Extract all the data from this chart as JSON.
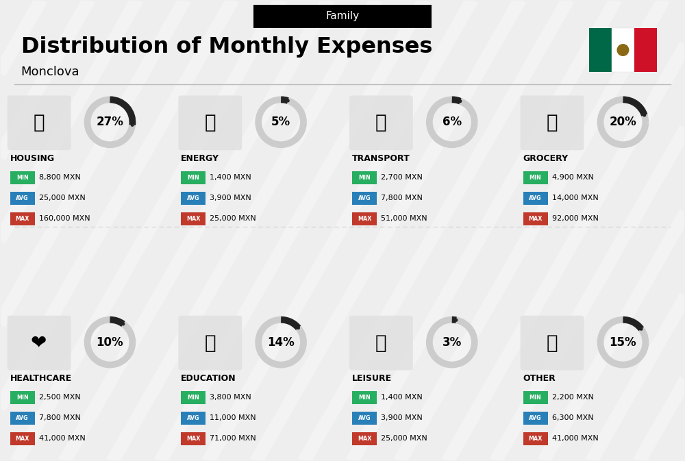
{
  "title": "Distribution of Monthly Expenses",
  "subtitle": "Monclova",
  "category_label": "Family",
  "background_color": "#eeeeee",
  "categories": [
    {
      "name": "HOUSING",
      "pct": 27,
      "min_val": "8,800 MXN",
      "avg_val": "25,000 MXN",
      "max_val": "160,000 MXN",
      "row": 0,
      "col": 0
    },
    {
      "name": "ENERGY",
      "pct": 5,
      "min_val": "1,400 MXN",
      "avg_val": "3,900 MXN",
      "max_val": "25,000 MXN",
      "row": 0,
      "col": 1
    },
    {
      "name": "TRANSPORT",
      "pct": 6,
      "min_val": "2,700 MXN",
      "avg_val": "7,800 MXN",
      "max_val": "51,000 MXN",
      "row": 0,
      "col": 2
    },
    {
      "name": "GROCERY",
      "pct": 20,
      "min_val": "4,900 MXN",
      "avg_val": "14,000 MXN",
      "max_val": "92,000 MXN",
      "row": 0,
      "col": 3
    },
    {
      "name": "HEALTHCARE",
      "pct": 10,
      "min_val": "2,500 MXN",
      "avg_val": "7,800 MXN",
      "max_val": "41,000 MXN",
      "row": 1,
      "col": 0
    },
    {
      "name": "EDUCATION",
      "pct": 14,
      "min_val": "3,800 MXN",
      "avg_val": "11,000 MXN",
      "max_val": "71,000 MXN",
      "row": 1,
      "col": 1
    },
    {
      "name": "LEISURE",
      "pct": 3,
      "min_val": "1,400 MXN",
      "avg_val": "3,900 MXN",
      "max_val": "25,000 MXN",
      "row": 1,
      "col": 2
    },
    {
      "name": "OTHER",
      "pct": 15,
      "min_val": "2,200 MXN",
      "avg_val": "6,300 MXN",
      "max_val": "41,000 MXN",
      "row": 1,
      "col": 3
    }
  ],
  "color_min": "#27ae60",
  "color_avg": "#2980b9",
  "color_max": "#c0392b",
  "arc_color": "#222222",
  "arc_bg_color": "#cccccc",
  "flag_green": "#006847",
  "flag_white": "#ffffff",
  "flag_red": "#ce1126",
  "stripe_color": "#ffffff",
  "divider_color": "#bbbbbb"
}
